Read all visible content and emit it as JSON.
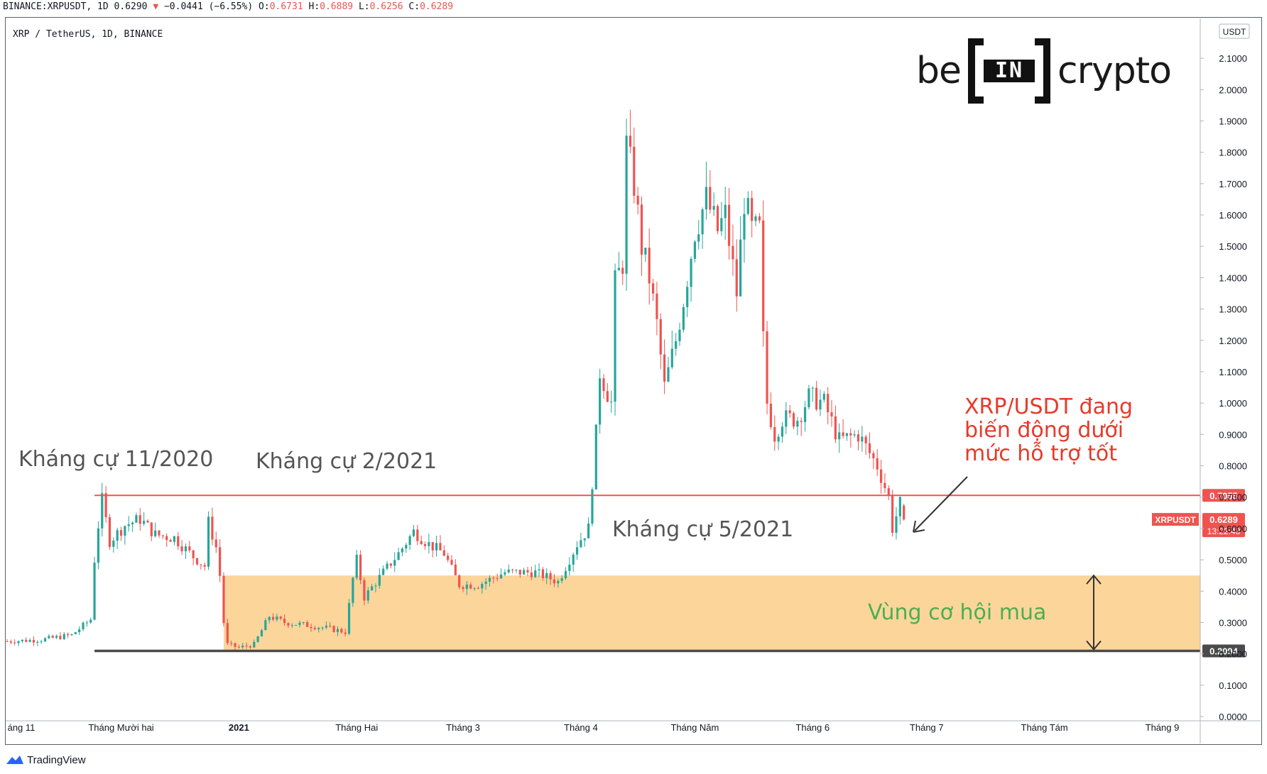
{
  "header": {
    "symbol_line": "BINANCE:XRPUSDT, 1D 0.6290",
    "arrow_icon": "triangle-down-icon",
    "change": "−0.0441 (−6.55%)",
    "o_label": "O:",
    "o_value": "0.6731",
    "h_label": "H:",
    "h_value": "0.6889",
    "l_label": "L:",
    "l_value": "0.6256",
    "c_label": "C:",
    "c_value": "0.6289"
  },
  "legend_title": "XRP / TetherUS, 1D, BINANCE",
  "logo": {
    "left": "be",
    "middle": "IN",
    "right": "crypto"
  },
  "footer": {
    "brand": "TradingView",
    "icon": "tradingview-logo-icon"
  },
  "colors": {
    "up": "#26a69a",
    "down": "#ef5350",
    "resistance": "#ef5350",
    "support": "#4a4a4a",
    "zone": "#fcd59b",
    "annotation_red": "#e8392a",
    "annotation_green": "#4caf50",
    "annotation_gray": "#555555"
  },
  "chart_data": {
    "type": "candlestick",
    "title": "XRP / TetherUS, 1D, BINANCE",
    "currency": "USDT",
    "ylim": [
      0,
      2.15
    ],
    "y_ticks": [
      "0.0000",
      "0.1000",
      "0.2000",
      "0.3000",
      "0.4000",
      "0.5000",
      "0.6000",
      "0.7000",
      "0.8000",
      "0.9000",
      "1.0000",
      "1.1000",
      "1.2000",
      "1.3000",
      "1.4000",
      "1.5000",
      "1.6000",
      "1.7000",
      "1.8000",
      "1.9000",
      "2.0000",
      "2.1000"
    ],
    "x_labels": [
      "áng 11",
      "Tháng Mười hai",
      "2021",
      "Tháng Hai",
      "Tháng 3",
      "Tháng 4",
      "Tháng Năm",
      "Tháng 6",
      "Tháng 7",
      "Tháng Tám",
      "Tháng 9"
    ],
    "x_label_dates": [
      "2020-11-01",
      "2020-12-01",
      "2021-01-01",
      "2021-02-01",
      "2021-03-01",
      "2021-04-01",
      "2021-05-01",
      "2021-06-01",
      "2021-07-01",
      "2021-08-01",
      "2021-09-01"
    ],
    "x_range": [
      "2020-11-01",
      "2021-09-11"
    ],
    "bold_x_labels": [
      "2021"
    ],
    "close_path": [
      [
        "2020-11-01",
        0.24
      ],
      [
        "2020-11-10",
        0.245
      ],
      [
        "2020-11-18",
        0.26
      ],
      [
        "2020-11-23",
        0.31
      ],
      [
        "2020-11-24",
        0.5
      ],
      [
        "2020-11-25",
        0.61
      ],
      [
        "2020-11-26",
        0.69
      ],
      [
        "2020-11-28",
        0.56
      ],
      [
        "2020-12-02",
        0.61
      ],
      [
        "2020-12-06",
        0.63
      ],
      [
        "2020-12-10",
        0.58
      ],
      [
        "2020-12-15",
        0.57
      ],
      [
        "2020-12-20",
        0.51
      ],
      [
        "2020-12-23",
        0.48
      ],
      [
        "2020-12-24",
        0.62
      ],
      [
        "2020-12-26",
        0.54
      ],
      [
        "2020-12-27",
        0.45
      ],
      [
        "2020-12-28",
        0.3
      ],
      [
        "2020-12-29",
        0.23
      ],
      [
        "2021-01-01",
        0.22
      ],
      [
        "2021-01-05",
        0.23
      ],
      [
        "2021-01-09",
        0.32
      ],
      [
        "2021-01-13",
        0.3
      ],
      [
        "2021-01-20",
        0.29
      ],
      [
        "2021-01-25",
        0.28
      ],
      [
        "2021-01-29",
        0.27
      ],
      [
        "2021-01-31",
        0.44
      ],
      [
        "2021-02-01",
        0.5
      ],
      [
        "2021-02-03",
        0.38
      ],
      [
        "2021-02-08",
        0.46
      ],
      [
        "2021-02-12",
        0.52
      ],
      [
        "2021-02-16",
        0.59
      ],
      [
        "2021-02-20",
        0.55
      ],
      [
        "2021-02-24",
        0.52
      ],
      [
        "2021-02-28",
        0.42
      ],
      [
        "2021-03-05",
        0.42
      ],
      [
        "2021-03-12",
        0.46
      ],
      [
        "2021-03-20",
        0.46
      ],
      [
        "2021-03-26",
        0.43
      ],
      [
        "2021-03-31",
        0.55
      ],
      [
        "2021-04-03",
        0.6
      ],
      [
        "2021-04-05",
        0.9
      ],
      [
        "2021-04-06",
        1.1
      ],
      [
        "2021-04-09",
        1.0
      ],
      [
        "2021-04-10",
        1.38
      ],
      [
        "2021-04-12",
        1.45
      ],
      [
        "2021-04-13",
        1.82
      ],
      [
        "2021-04-15",
        1.7
      ],
      [
        "2021-04-17",
        1.5
      ],
      [
        "2021-04-19",
        1.4
      ],
      [
        "2021-04-21",
        1.25
      ],
      [
        "2021-04-23",
        1.05
      ],
      [
        "2021-04-26",
        1.2
      ],
      [
        "2021-04-28",
        1.33
      ],
      [
        "2021-05-01",
        1.55
      ],
      [
        "2021-05-04",
        1.65
      ],
      [
        "2021-05-07",
        1.55
      ],
      [
        "2021-05-09",
        1.6
      ],
      [
        "2021-05-12",
        1.35
      ],
      [
        "2021-05-14",
        1.65
      ],
      [
        "2021-05-16",
        1.55
      ],
      [
        "2021-05-18",
        1.55
      ],
      [
        "2021-05-19",
        1.2
      ],
      [
        "2021-05-20",
        1.0
      ],
      [
        "2021-05-22",
        0.9
      ],
      [
        "2021-05-24",
        0.95
      ],
      [
        "2021-05-28",
        0.95
      ],
      [
        "2021-05-31",
        1.02
      ],
      [
        "2021-06-04",
        1.0
      ],
      [
        "2021-06-08",
        0.88
      ],
      [
        "2021-06-13",
        0.9
      ],
      [
        "2021-06-18",
        0.8
      ],
      [
        "2021-06-21",
        0.7
      ],
      [
        "2021-06-22",
        0.6
      ],
      [
        "2021-06-24",
        0.68
      ],
      [
        "2021-06-25",
        0.629
      ]
    ],
    "last_ohlc": {
      "open": 0.6731,
      "high": 0.6889,
      "low": 0.6256,
      "close": 0.6289
    },
    "levels": [
      {
        "value": 0.7055,
        "label": "0.7055",
        "style": "resistance"
      },
      {
        "value": 0.2094,
        "label": "0.2094",
        "style": "support"
      }
    ],
    "current_price": {
      "symbol": "XRPUSDT",
      "value": 0.6289,
      "label": "0.6289",
      "countdown": "13:22:43"
    },
    "zone": {
      "from": 0.2094,
      "to": 0.45,
      "start": "2020-12-28"
    },
    "annotations": [
      {
        "text": "Kháng cự 11/2020",
        "color": "gray"
      },
      {
        "text": "Kháng cự 2/2021",
        "color": "gray"
      },
      {
        "text": "Kháng cự 5/2021",
        "color": "gray"
      },
      {
        "text": "XRP/USDT đang\nbiến động dưới\nmức hỗ trợ tốt",
        "color": "red"
      },
      {
        "text": "Vùng cơ hội mua",
        "color": "green"
      }
    ]
  }
}
